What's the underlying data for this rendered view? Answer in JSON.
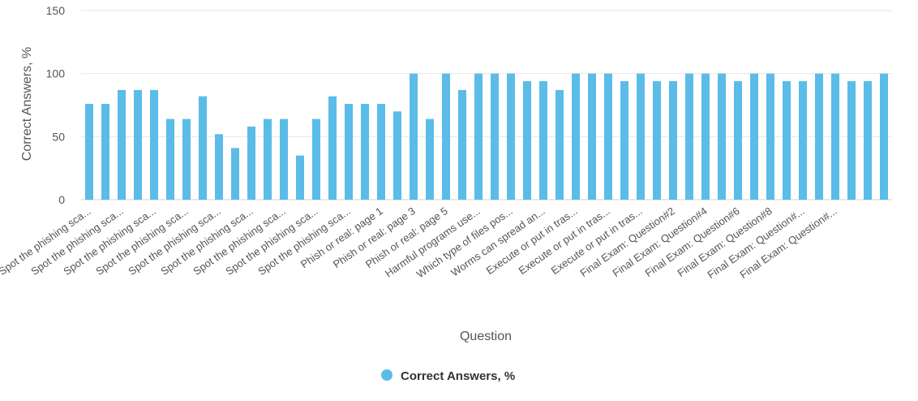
{
  "chart_data": {
    "type": "bar",
    "title": "",
    "xlabel": "Question",
    "ylabel": "Correct Answers, %",
    "ylim": [
      0,
      150
    ],
    "yticks": [
      0,
      50,
      100,
      150
    ],
    "grid": true,
    "legend_position": "bottom",
    "colors": {
      "bar": "#5bbce8",
      "grid": "#e6e6e6",
      "axis": "#c8d0dc",
      "text": "#555555"
    },
    "x_tick_labels": [
      "Spot the phishing sca...",
      "Spot the phishing sca...",
      "Spot the phishing sca...",
      "Spot the phishing sca...",
      "Spot the phishing sca...",
      "Spot the phishing sca...",
      "Spot the phishing sca...",
      "Spot the phishing sca...",
      "Spot the phishing sca...",
      "Phish or real: page 1",
      "Phish or real: page 3",
      "Phish or real: page 5",
      "Harmful programs use...",
      "Which type of files pos...",
      "Worms can spread an...",
      "Execute or put in tras...",
      "Execute or put in tras...",
      "Execute or put in tras...",
      "Final Exam: Question#2",
      "Final Exam: Question#4",
      "Final Exam: Question#6",
      "Final Exam: Question#8",
      "Final Exam: Question#...",
      "Final Exam: Question#..."
    ],
    "series": [
      {
        "name": "Correct Answers, %",
        "values": [
          76,
          76,
          87,
          87,
          87,
          64,
          64,
          82,
          52,
          41,
          58,
          64,
          64,
          35,
          64,
          82,
          76,
          76,
          76,
          70,
          100,
          64,
          100,
          87,
          100,
          100,
          100,
          94,
          94,
          87,
          100,
          100,
          100,
          94,
          100,
          94,
          94,
          100,
          100,
          100,
          94,
          100,
          100,
          94,
          94,
          100,
          100,
          94,
          94,
          100
        ]
      }
    ]
  }
}
